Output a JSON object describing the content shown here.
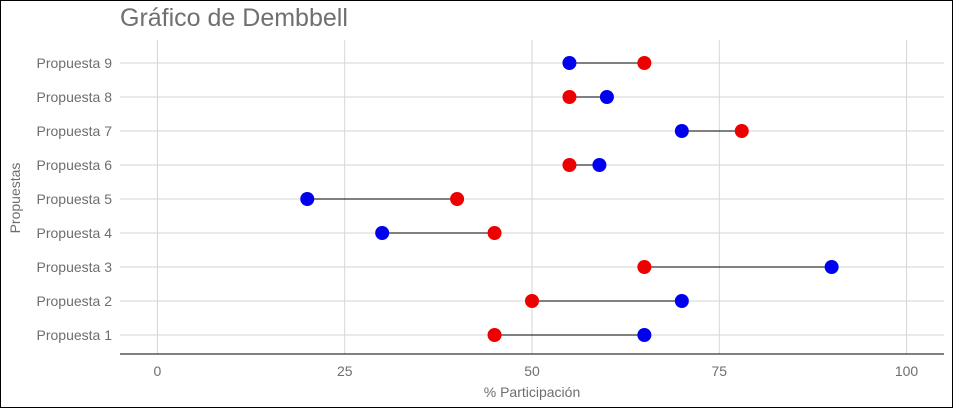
{
  "chart_data": {
    "type": "dumbbell",
    "title": "Gráfico de Dembbell",
    "xlabel": "% Participación",
    "ylabel": "Propuestas",
    "xlim": [
      -5,
      105
    ],
    "xticks": [
      0,
      25,
      50,
      75,
      100
    ],
    "grid": true,
    "categories": [
      "Propuesta 1",
      "Propuesta 2",
      "Propuesta 3",
      "Propuesta 4",
      "Propuesta 5",
      "Propuesta 6",
      "Propuesta 7",
      "Propuesta 8",
      "Propuesta 9"
    ],
    "series": [
      {
        "color": "#ee0000",
        "values": [
          45,
          50,
          65,
          45,
          40,
          55,
          78,
          55,
          65
        ]
      },
      {
        "color": "#0000ee",
        "values": [
          65,
          70,
          90,
          30,
          20,
          59,
          70,
          60,
          55
        ]
      }
    ],
    "line_color": "#000000",
    "grid_color": "#d6d6d6"
  }
}
